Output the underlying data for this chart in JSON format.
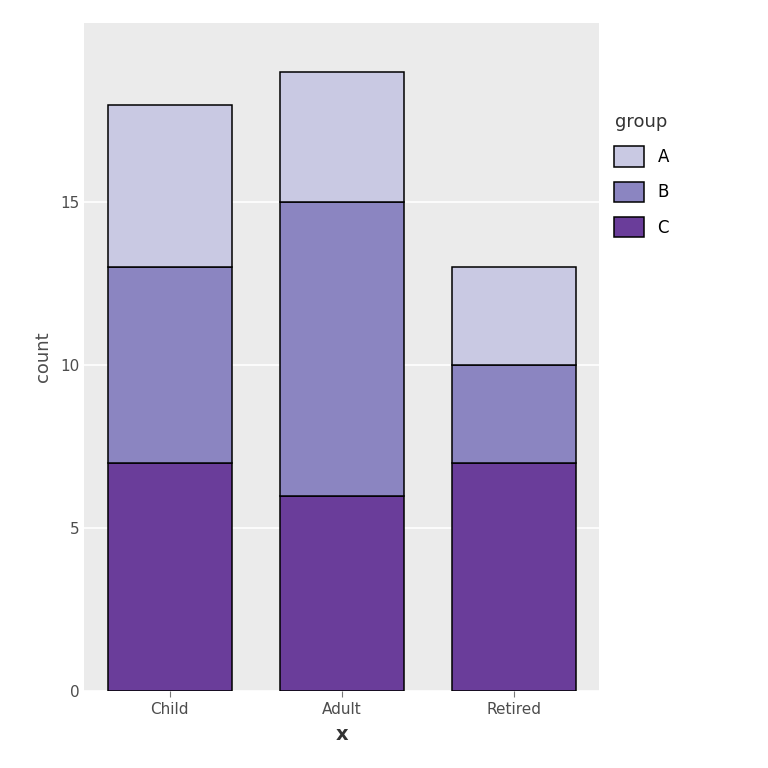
{
  "categories": [
    "Child",
    "Adult",
    "Retired"
  ],
  "segments": {
    "C": [
      7,
      6,
      7
    ],
    "B": [
      6,
      9,
      3
    ],
    "A": [
      5,
      4,
      3
    ]
  },
  "colors": {
    "A": "#C9C9E3",
    "B": "#8B85C1",
    "C": "#6A3D9A"
  },
  "bar_width": 0.72,
  "edgecolor": "#000000",
  "linewidth": 1.1,
  "plot_bg": "#EBEBEB",
  "fig_bg": "#FFFFFF",
  "grid_color": "#FFFFFF",
  "xlabel": "x",
  "ylabel": "count",
  "legend_title": "group",
  "ylim": [
    0,
    20.5
  ],
  "yticks": [
    0,
    5,
    10,
    15
  ],
  "tick_fontsize": 11,
  "axis_label_fontsize": 13,
  "legend_fontsize": 12
}
